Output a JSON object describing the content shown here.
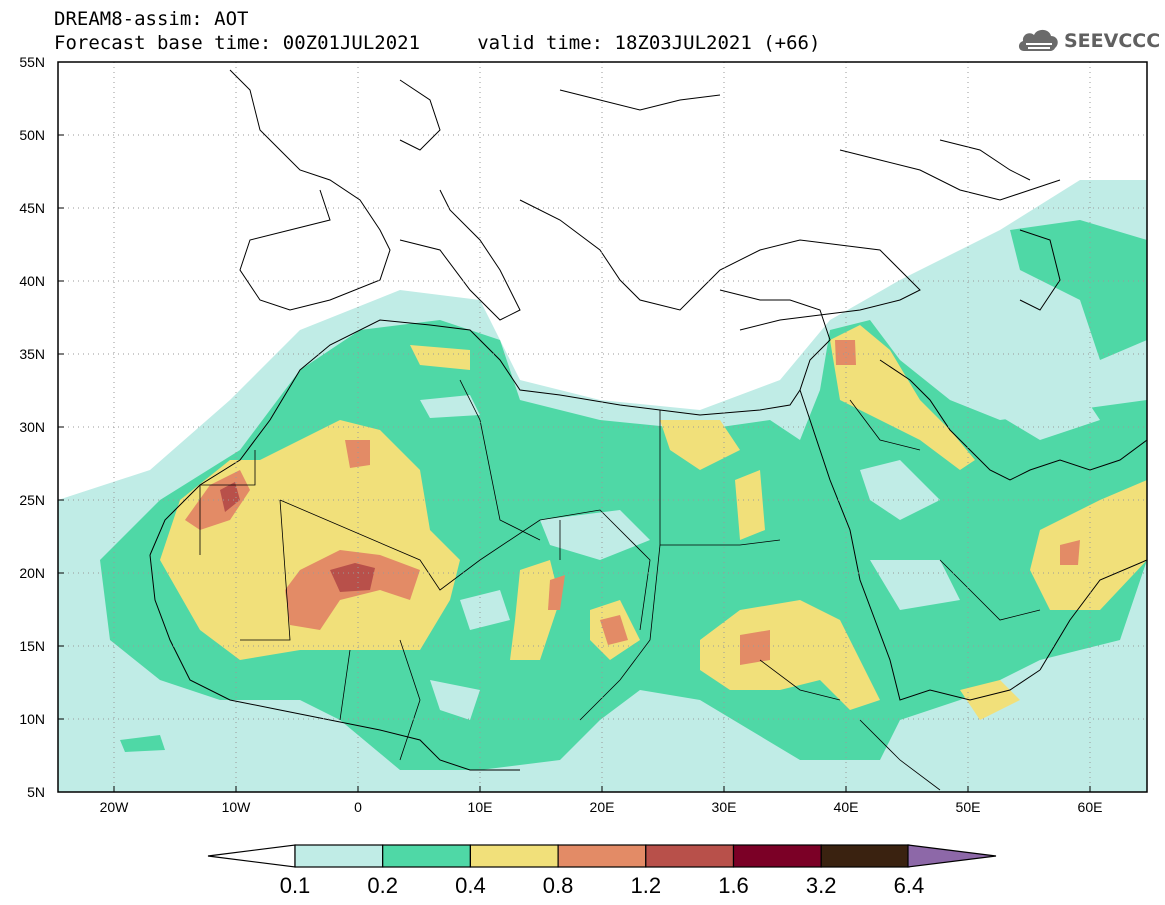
{
  "header": {
    "title_line1": "DREAM8-assim: AOT",
    "title_line2": "Forecast base time: 00Z01JUL2021     valid time: 18Z03JUL2021 (+66)"
  },
  "logo": {
    "text": "SEEVCCC",
    "icon": "cloud-icon"
  },
  "map": {
    "lat_labels": [
      "55N",
      "50N",
      "45N",
      "40N",
      "35N",
      "30N",
      "25N",
      "20N",
      "15N",
      "10N",
      "5N"
    ],
    "lon_labels": [
      "20W",
      "10W",
      "0",
      "10E",
      "20E",
      "30E",
      "40E",
      "50E",
      "60E"
    ]
  },
  "colorbar": {
    "labels": [
      "0.1",
      "0.2",
      "0.4",
      "0.8",
      "1.2",
      "1.6",
      "3.2",
      "6.4"
    ],
    "colors": [
      "#c0ece6",
      "#4fd8a6",
      "#f1e07a",
      "#e38b66",
      "#b8504a",
      "#7b0026",
      "#3a2210",
      "#8d68a8"
    ]
  },
  "chart_data": {
    "type": "heatmap",
    "title": "DREAM8-assim: AOT",
    "subtitle": "Forecast base time: 00Z01JUL2021     valid time: 18Z03JUL2021 (+66)",
    "x_range": [
      "25W",
      "65E"
    ],
    "y_range": [
      "5N",
      "55N"
    ],
    "levels": [
      0.1,
      0.2,
      0.4,
      0.8,
      1.2,
      1.6,
      3.2,
      6.4
    ]
  }
}
